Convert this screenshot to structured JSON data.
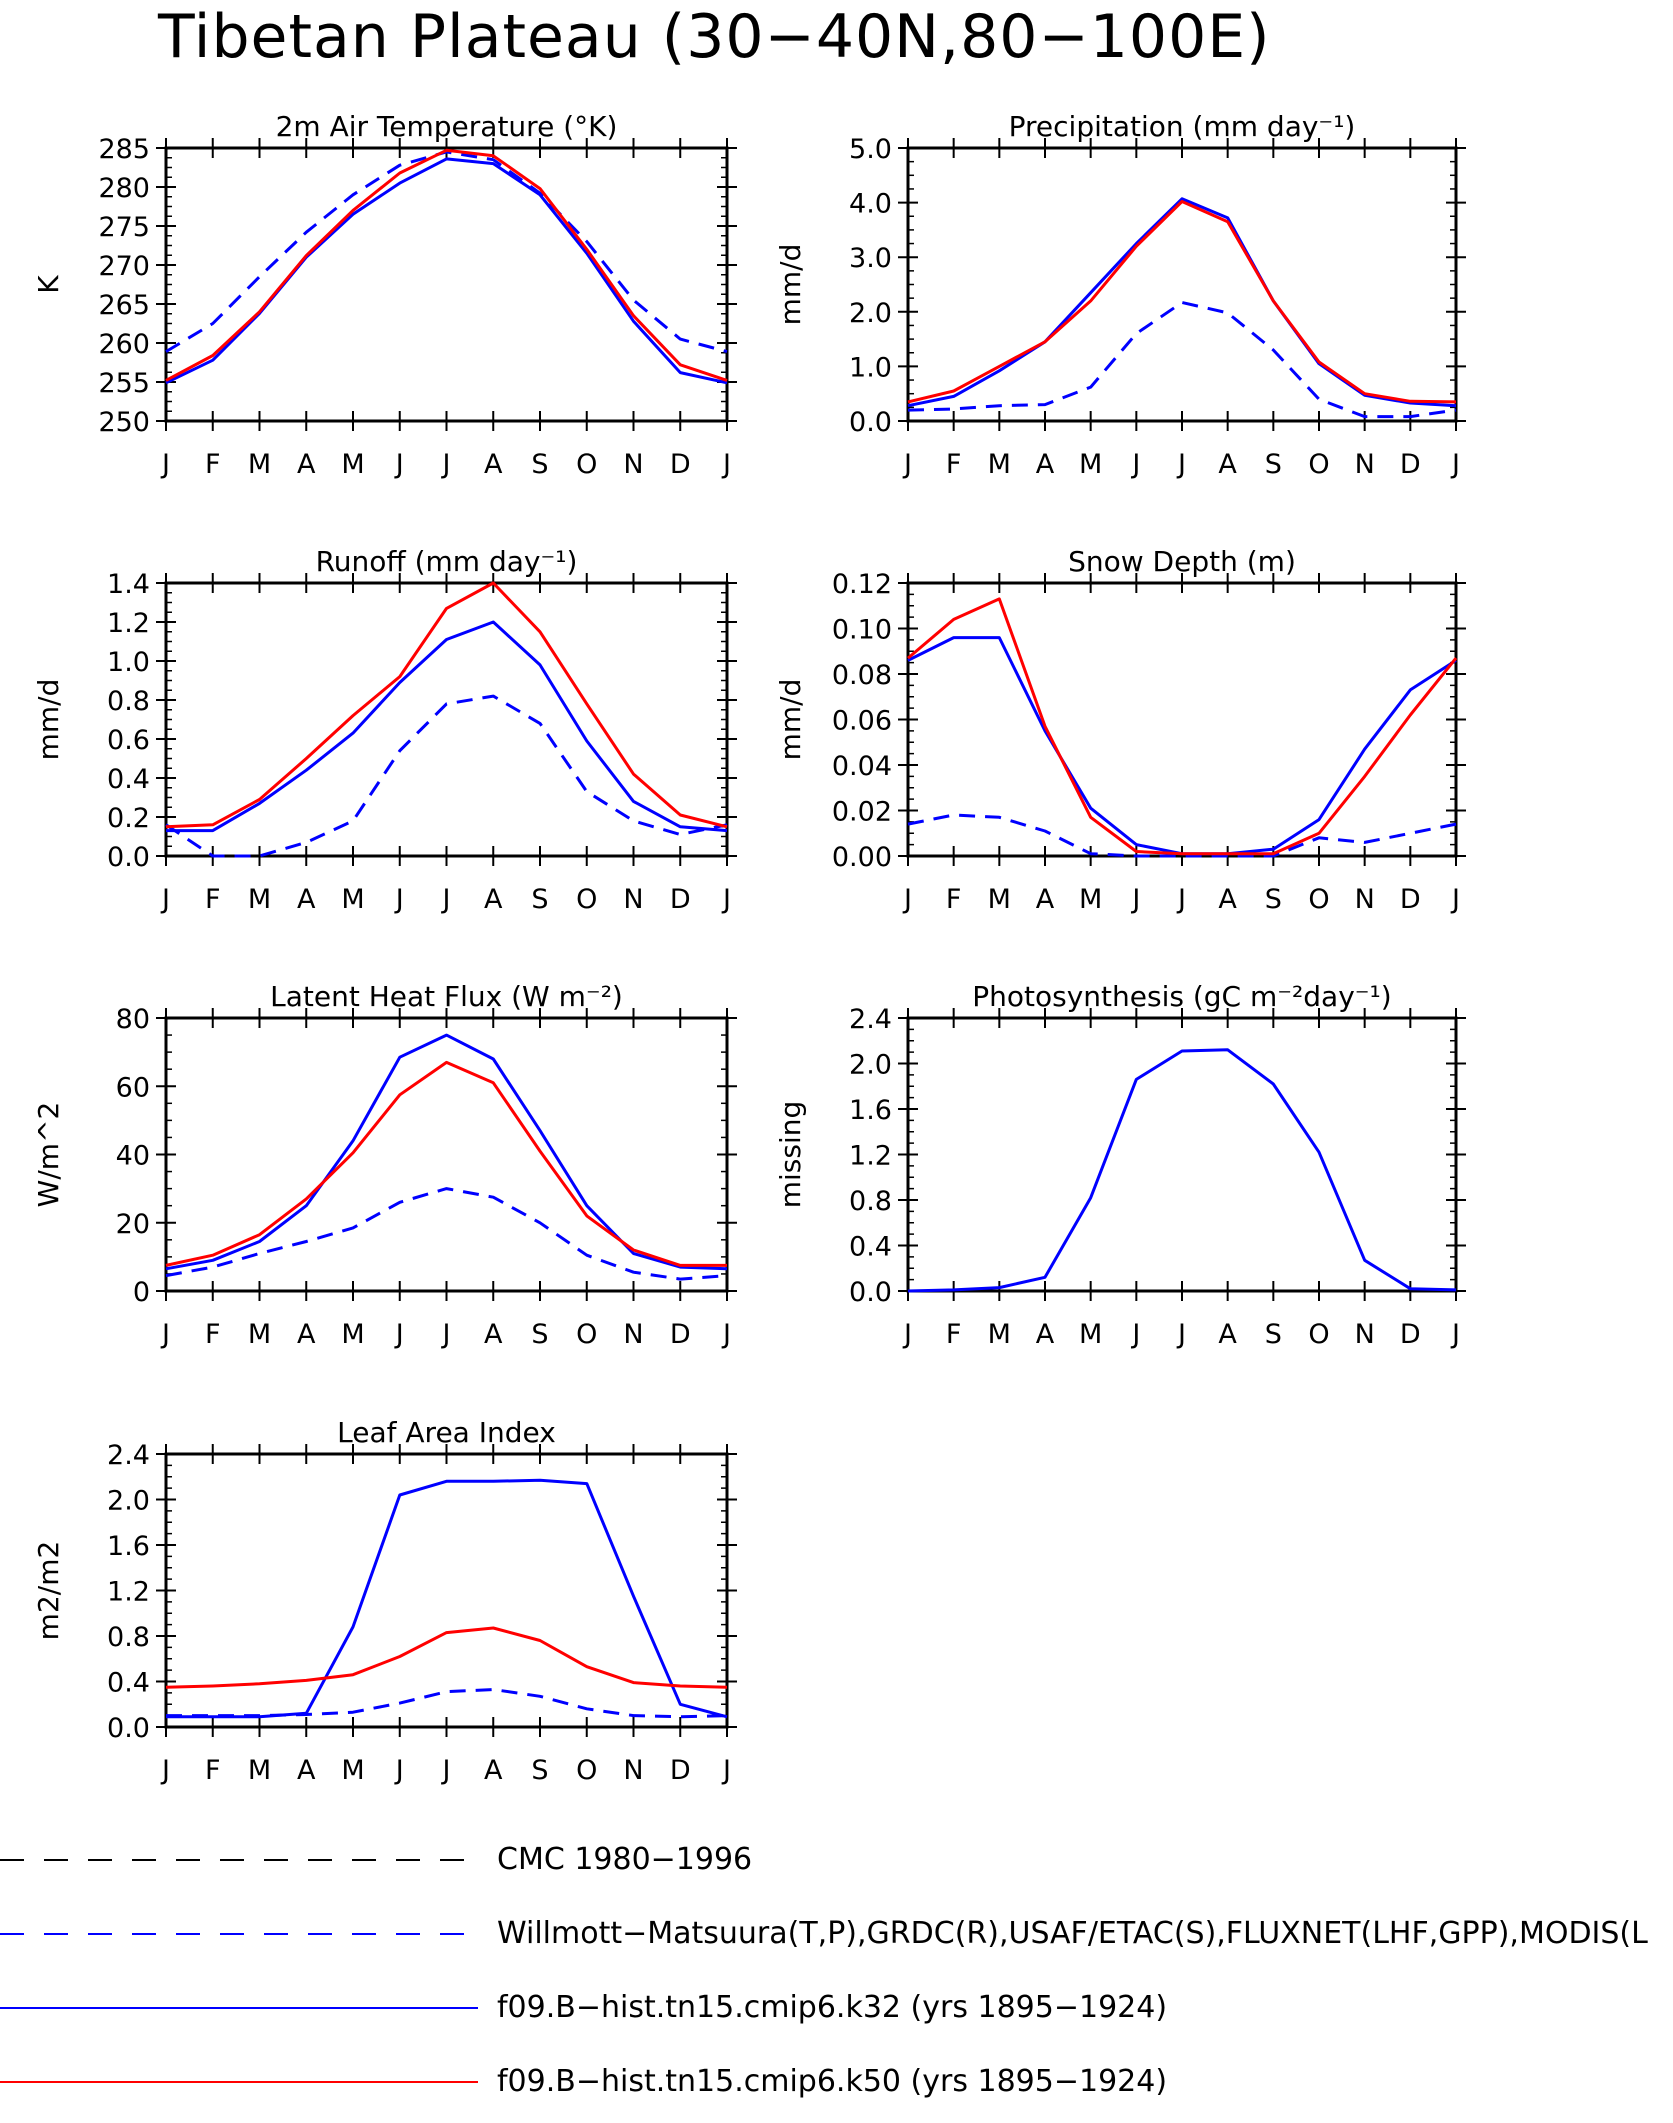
{
  "title": "Tibetan Plateau (30−40N,80−100E)",
  "months": [
    "J",
    "F",
    "M",
    "A",
    "M",
    "J",
    "J",
    "A",
    "S",
    "O",
    "N",
    "D",
    "J"
  ],
  "colors": {
    "obs": "#0000ff",
    "k32": "#0000ff",
    "k50": "#ff0000",
    "cmc": "#000000"
  },
  "legend": [
    {
      "label": "CMC 1980−1996",
      "color": "#000000",
      "style": "dashed"
    },
    {
      "label": "Willmott−Matsuura(T,P),GRDC(R),USAF/ETAC(S),FLUXNET(LHF,GPP),MODIS(L",
      "color": "#0000ff",
      "style": "dashed"
    },
    {
      "label": "f09.B−hist.tn15.cmip6.k32 (yrs 1895−1924)",
      "color": "#0000ff",
      "style": "solid"
    },
    {
      "label": "f09.B−hist.tn15.cmip6.k50 (yrs 1895−1924)",
      "color": "#ff0000",
      "style": "solid"
    }
  ],
  "chart_data": [
    {
      "type": "line",
      "title": "2m Air Temperature (°K)",
      "ylabel": "K",
      "ylim": [
        250,
        285
      ],
      "yticks": [
        "250",
        "255",
        "260",
        "265",
        "270",
        "275",
        "280",
        "285"
      ],
      "categories": [
        "J",
        "F",
        "M",
        "A",
        "M",
        "J",
        "J",
        "A",
        "S",
        "O",
        "N",
        "D",
        "J"
      ],
      "series": [
        {
          "key": "obs",
          "values": [
            258.9,
            262.5,
            268.5,
            274.2,
            279.0,
            282.8,
            284.5,
            283.5,
            279.2,
            273.0,
            265.5,
            260.5,
            258.9
          ]
        },
        {
          "key": "k32",
          "values": [
            254.9,
            257.8,
            263.8,
            271.0,
            276.5,
            280.5,
            283.6,
            283.0,
            279.0,
            271.5,
            262.8,
            256.2,
            254.9
          ]
        },
        {
          "key": "k50",
          "values": [
            255.2,
            258.4,
            264.0,
            271.2,
            277.0,
            281.8,
            284.7,
            284.0,
            279.8,
            272.0,
            263.5,
            257.2,
            255.2
          ]
        }
      ]
    },
    {
      "type": "line",
      "title": "Precipitation (mm day⁻¹)",
      "ylabel": "mm/d",
      "ylim": [
        0,
        5
      ],
      "yticks": [
        "0.0",
        "1.0",
        "2.0",
        "3.0",
        "4.0",
        "5.0"
      ],
      "categories": [
        "J",
        "F",
        "M",
        "A",
        "M",
        "J",
        "J",
        "A",
        "S",
        "O",
        "N",
        "D",
        "J"
      ],
      "series": [
        {
          "key": "obs",
          "values": [
            0.2,
            0.22,
            0.28,
            0.3,
            0.62,
            1.6,
            2.17,
            1.98,
            1.3,
            0.4,
            0.08,
            0.08,
            0.2
          ]
        },
        {
          "key": "k32",
          "values": [
            0.28,
            0.45,
            0.92,
            1.45,
            2.35,
            3.25,
            4.07,
            3.72,
            2.2,
            1.05,
            0.47,
            0.33,
            0.28
          ]
        },
        {
          "key": "k50",
          "values": [
            0.35,
            0.55,
            1.0,
            1.45,
            2.2,
            3.2,
            4.02,
            3.65,
            2.2,
            1.08,
            0.5,
            0.36,
            0.35
          ]
        }
      ]
    },
    {
      "type": "line",
      "title": "Runoff (mm day⁻¹)",
      "ylabel": "mm/d",
      "ylim": [
        0,
        1.4
      ],
      "yticks": [
        "0.0",
        "0.2",
        "0.4",
        "0.6",
        "0.8",
        "1.0",
        "1.2",
        "1.4"
      ],
      "categories": [
        "J",
        "F",
        "M",
        "A",
        "M",
        "J",
        "J",
        "A",
        "S",
        "O",
        "N",
        "D",
        "J"
      ],
      "series": [
        {
          "key": "obs",
          "values": [
            0.16,
            0.0,
            0.0,
            0.07,
            0.18,
            0.54,
            0.78,
            0.82,
            0.68,
            0.33,
            0.18,
            0.11,
            0.16
          ]
        },
        {
          "key": "k32",
          "values": [
            0.13,
            0.13,
            0.27,
            0.44,
            0.63,
            0.89,
            1.11,
            1.2,
            0.98,
            0.59,
            0.28,
            0.15,
            0.13
          ]
        },
        {
          "key": "k50",
          "values": [
            0.15,
            0.16,
            0.29,
            0.5,
            0.72,
            0.92,
            1.27,
            1.4,
            1.15,
            0.78,
            0.42,
            0.21,
            0.15
          ]
        }
      ]
    },
    {
      "type": "line",
      "title": "Snow Depth (m)",
      "ylabel": "mm/d",
      "ylim": [
        0,
        0.12
      ],
      "yticks": [
        "0.00",
        "0.02",
        "0.04",
        "0.06",
        "0.08",
        "0.10",
        "0.12"
      ],
      "categories": [
        "J",
        "F",
        "M",
        "A",
        "M",
        "J",
        "J",
        "A",
        "S",
        "O",
        "N",
        "D",
        "J"
      ],
      "series": [
        {
          "key": "cmc",
          "values": [
            0,
            0,
            0,
            0,
            0,
            0,
            0,
            0,
            0,
            0,
            0,
            0,
            0
          ]
        },
        {
          "key": "obs",
          "values": [
            0.014,
            0.018,
            0.017,
            0.011,
            0.001,
            0.0,
            0.0,
            0.0,
            0.0,
            0.008,
            0.006,
            0.01,
            0.014
          ]
        },
        {
          "key": "k32",
          "values": [
            0.086,
            0.096,
            0.096,
            0.055,
            0.021,
            0.005,
            0.001,
            0.001,
            0.003,
            0.016,
            0.047,
            0.073,
            0.086
          ]
        },
        {
          "key": "k50",
          "values": [
            0.087,
            0.104,
            0.113,
            0.057,
            0.017,
            0.002,
            0.001,
            0.001,
            0.001,
            0.01,
            0.035,
            0.062,
            0.087
          ]
        }
      ]
    },
    {
      "type": "line",
      "title": "Latent Heat Flux (W m⁻²)",
      "ylabel": "W/m^2",
      "ylim": [
        0,
        80
      ],
      "yticks": [
        "0",
        "20",
        "40",
        "60",
        "80"
      ],
      "categories": [
        "J",
        "F",
        "M",
        "A",
        "M",
        "J",
        "J",
        "A",
        "S",
        "O",
        "N",
        "D",
        "J"
      ],
      "series": [
        {
          "key": "obs",
          "values": [
            4.5,
            7.0,
            11.0,
            14.5,
            18.5,
            26.0,
            30.0,
            27.5,
            20.0,
            10.5,
            5.5,
            3.5,
            4.5
          ]
        },
        {
          "key": "k32",
          "values": [
            6.5,
            9.0,
            14.5,
            25.0,
            44.0,
            68.5,
            75.0,
            68.0,
            47.0,
            25.0,
            11.0,
            7.0,
            6.5
          ]
        },
        {
          "key": "k50",
          "values": [
            7.5,
            10.5,
            16.5,
            27.0,
            40.5,
            57.5,
            67.0,
            61.0,
            41.0,
            22.0,
            12.0,
            7.5,
            7.5
          ]
        }
      ]
    },
    {
      "type": "line",
      "title": "Photosynthesis (gC m⁻²day⁻¹)",
      "ylabel": "missing",
      "ylim": [
        0,
        2.4
      ],
      "yticks": [
        "0.0",
        "0.4",
        "0.8",
        "1.2",
        "1.6",
        "2.0",
        "2.4"
      ],
      "categories": [
        "J",
        "F",
        "M",
        "A",
        "M",
        "J",
        "J",
        "A",
        "S",
        "O",
        "N",
        "D",
        "J"
      ],
      "series": [
        {
          "key": "k32",
          "values": [
            0.0,
            0.01,
            0.03,
            0.12,
            0.82,
            1.86,
            2.11,
            2.12,
            1.82,
            1.22,
            0.27,
            0.02,
            0.01
          ]
        }
      ]
    },
    {
      "type": "line",
      "title": "Leaf Area Index",
      "ylabel": "m2/m2",
      "ylim": [
        0,
        2.4
      ],
      "yticks": [
        "0.0",
        "0.4",
        "0.8",
        "1.2",
        "1.6",
        "2.0",
        "2.4"
      ],
      "categories": [
        "J",
        "F",
        "M",
        "A",
        "M",
        "J",
        "J",
        "A",
        "S",
        "O",
        "N",
        "D",
        "J"
      ],
      "series": [
        {
          "key": "obs",
          "values": [
            0.1,
            0.1,
            0.1,
            0.11,
            0.13,
            0.21,
            0.31,
            0.33,
            0.27,
            0.16,
            0.1,
            0.09,
            0.1
          ]
        },
        {
          "key": "k32",
          "values": [
            0.09,
            0.09,
            0.09,
            0.12,
            0.88,
            2.04,
            2.16,
            2.16,
            2.17,
            2.14,
            1.15,
            0.2,
            0.09
          ]
        },
        {
          "key": "k50",
          "values": [
            0.35,
            0.36,
            0.38,
            0.41,
            0.46,
            0.62,
            0.83,
            0.87,
            0.76,
            0.53,
            0.39,
            0.36,
            0.35
          ]
        }
      ]
    }
  ]
}
